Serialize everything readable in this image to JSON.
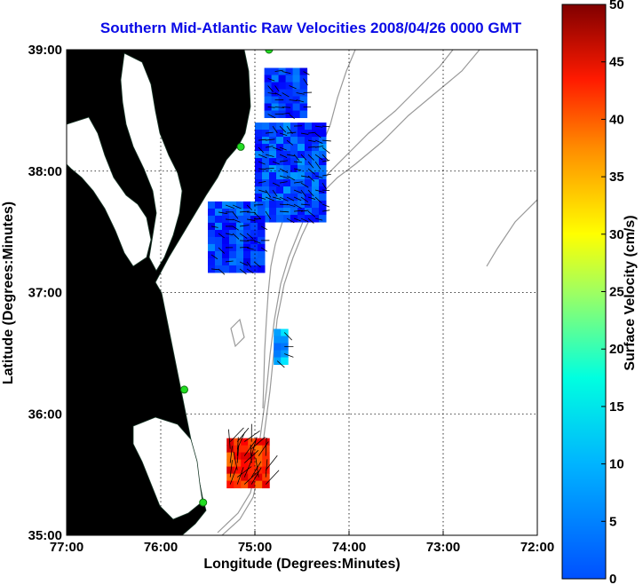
{
  "title": "Southern Mid-Atlantic Raw Velocities 2008/04/26 0000 GMT",
  "xlabel": "Longitude (Degrees:Minutes)",
  "ylabel": "Latitude (Degrees:Minutes)",
  "colorbar_label": "Surface Velocity (cm/s)",
  "x_ticks": [
    "77:00",
    "76:00",
    "75:00",
    "74:00",
    "73:00",
    "72:00"
  ],
  "y_ticks": [
    "39:00",
    "38:00",
    "37:00",
    "36:00",
    "35:00"
  ],
  "colorbar_ticks": [
    "0",
    "5",
    "10",
    "15",
    "20",
    "25",
    "30",
    "35",
    "40",
    "45",
    "50"
  ],
  "colors": {
    "land": "#55f0a8",
    "title": "#0a0ae6",
    "station": "#22dd22",
    "bathymetry": "#999999"
  },
  "chart_data": {
    "type": "heatmap",
    "title": "Southern Mid-Atlantic Raw Velocities 2008/04/26 0000 GMT",
    "xlabel": "Longitude (Degrees:Minutes)",
    "ylabel": "Latitude (Degrees:Minutes)",
    "xlim": [
      -77,
      -72
    ],
    "ylim": [
      35,
      39
    ],
    "color_scale": {
      "label": "Surface Velocity (cm/s)",
      "min": 0,
      "max": 50,
      "colormap": "jet"
    },
    "grid": true,
    "regions": [
      {
        "name": "",
        "lon": [
          -74.9,
          -74.45
        ],
        "lat": [
          38.45,
          38.85
        ],
        "speed_cm_s": 9
      },
      {
        "name": "",
        "lon": [
          -75.0,
          -74.3
        ],
        "lat": [
          37.6,
          38.4
        ],
        "speed_cm_s": 10
      },
      {
        "name": "",
        "lon": [
          -75.5,
          -74.9
        ],
        "lat": [
          37.2,
          37.75
        ],
        "speed_cm_s": 9
      },
      {
        "name": "",
        "lon": [
          -74.8,
          -74.65
        ],
        "lat": [
          36.45,
          36.7
        ],
        "speed_cm_s": 14
      },
      {
        "name": "",
        "lon": [
          -75.3,
          -74.9
        ],
        "lat": [
          35.4,
          35.8
        ],
        "speed_cm_s": 42
      }
    ],
    "stations": [
      {
        "lon": -74.85,
        "lat": 39.0
      },
      {
        "lon": -75.15,
        "lat": 38.2
      },
      {
        "lon": -75.75,
        "lat": 36.2
      },
      {
        "lon": -75.55,
        "lat": 35.27
      }
    ]
  }
}
